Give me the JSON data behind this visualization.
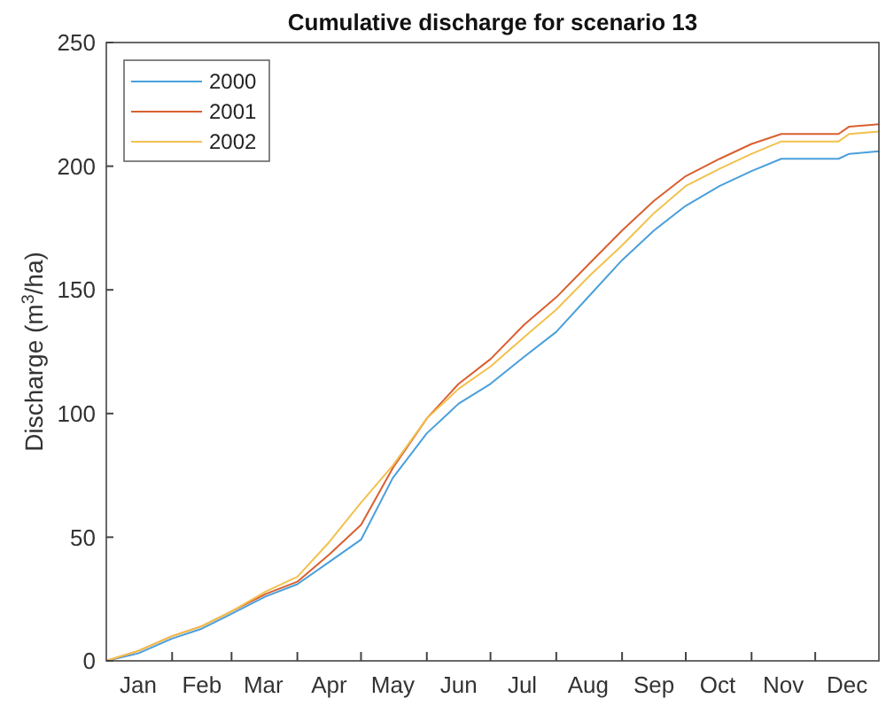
{
  "chart_data": {
    "type": "line",
    "title": "Cumulative discharge for scenario 13",
    "ylabel": "Discharge (m$^{3}$/ha)",
    "x": [
      "--01-01",
      "--01-16",
      "--02-01",
      "--02-15",
      "--03-01",
      "--03-17",
      "--04-01",
      "--04-16",
      "--05-01",
      "--05-16",
      "--06-01",
      "--06-16",
      "--07-01",
      "--07-17",
      "--08-01",
      "--08-17",
      "--09-01",
      "--09-16",
      "--10-01",
      "--10-17",
      "--11-01",
      "--11-15",
      "--12-12",
      "--12-17",
      "--12-31"
    ],
    "series": [
      {
        "name": "2000",
        "color": "#4a9fdc",
        "values": [
          0,
          3,
          9,
          13,
          19,
          26,
          31,
          40,
          49,
          74,
          92,
          104,
          112,
          123,
          133,
          148,
          162,
          174,
          184,
          192,
          198,
          203,
          203,
          205,
          206
        ]
      },
      {
        "name": "2001",
        "color": "#d95f30",
        "values": [
          0,
          4,
          10,
          14,
          20,
          27,
          32,
          43,
          55,
          78,
          98,
          112,
          122,
          136,
          147,
          161,
          174,
          186,
          196,
          203,
          209,
          213,
          213,
          216,
          217
        ]
      },
      {
        "name": "2002",
        "color": "#f2c14e",
        "values": [
          0,
          4,
          10,
          14,
          20,
          28,
          34,
          48,
          64,
          79,
          98,
          110,
          119,
          131,
          142,
          156,
          168,
          181,
          192,
          199,
          205,
          210,
          210,
          213,
          214
        ]
      }
    ],
    "xlim": [
      "--01-01",
      "--12-31"
    ],
    "ylim": [
      0,
      250
    ],
    "yticks": [
      0,
      50,
      100,
      150,
      200,
      250
    ],
    "xticks": [
      {
        "value": "--01-16",
        "label": "Jan"
      },
      {
        "value": "--02-01",
        "label": null
      },
      {
        "value": "--02-15",
        "label": "Feb"
      },
      {
        "value": "--03-01",
        "label": null
      },
      {
        "value": "--03-16",
        "label": "Mar"
      },
      {
        "value": "--04-01",
        "label": null
      },
      {
        "value": "--04-16",
        "label": "Apr"
      },
      {
        "value": "--05-01",
        "label": null
      },
      {
        "value": "--05-16",
        "label": "May"
      },
      {
        "value": "--06-01",
        "label": null
      },
      {
        "value": "--06-16",
        "label": "Jun"
      },
      {
        "value": "--07-01",
        "label": null
      },
      {
        "value": "--07-16",
        "label": "Jul"
      },
      {
        "value": "--08-01",
        "label": null
      },
      {
        "value": "--08-16",
        "label": "Aug"
      },
      {
        "value": "--09-01",
        "label": null
      },
      {
        "value": "--09-16",
        "label": "Sep"
      },
      {
        "value": "--10-01",
        "label": null
      },
      {
        "value": "--10-16",
        "label": "Oct"
      },
      {
        "value": "--11-01",
        "label": null
      },
      {
        "value": "--11-16",
        "label": "Nov"
      },
      {
        "value": "--12-01",
        "label": null
      },
      {
        "value": "--12-16",
        "label": "Dec"
      }
    ],
    "legend": "top left",
    "grid": false
  }
}
